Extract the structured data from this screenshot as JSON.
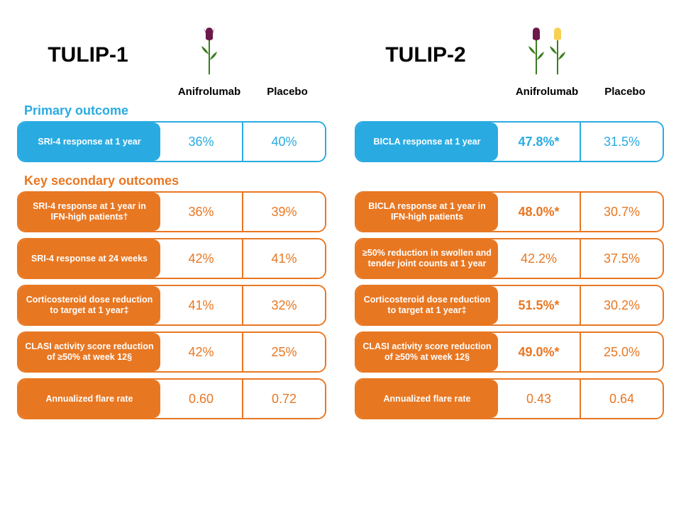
{
  "colors": {
    "blue": "#29abe2",
    "orange": "#e87722",
    "black": "#000000",
    "white": "#ffffff"
  },
  "trials": {
    "tulip1": {
      "title": "TULIP-1",
      "tulip_colors": [
        "#6b1a4a"
      ],
      "drug_labels": {
        "anif": "Anifrolumab",
        "plac": "Placebo"
      },
      "primary": {
        "label": "SRI-4 response at 1 year",
        "anif": "36%",
        "plac": "40%",
        "anif_bold": false
      },
      "secondary": [
        {
          "label": "SRI-4 response at 1 year in IFN-high patients†",
          "anif": "36%",
          "plac": "39%",
          "anif_bold": false
        },
        {
          "label": "SRI-4 response at 24 weeks",
          "anif": "42%",
          "plac": "41%",
          "anif_bold": false
        },
        {
          "label": "Corticosteroid dose reduction to target at 1  year‡",
          "anif": "41%",
          "plac": "32%",
          "anif_bold": false
        },
        {
          "label": "CLASI activity score reduction of ≥50% at week 12§",
          "anif": "42%",
          "plac": "25%",
          "anif_bold": false
        },
        {
          "label": "Annualized flare rate",
          "anif": "0.60",
          "plac": "0.72",
          "anif_bold": false
        }
      ]
    },
    "tulip2": {
      "title": "TULIP-2",
      "tulip_colors": [
        "#6b1a4a",
        "#f7d154"
      ],
      "drug_labels": {
        "anif": "Anifrolumab",
        "plac": "Placebo"
      },
      "primary": {
        "label": "BICLA response at 1 year",
        "anif": "47.8%*",
        "plac": "31.5%",
        "anif_bold": true,
        "anif_fillblue": true
      },
      "secondary": [
        {
          "label": "BICLA response at 1 year in IFN-high patients",
          "anif": "48.0%*",
          "plac": "30.7%",
          "anif_bold": true
        },
        {
          "label": "≥50% reduction in swollen and tender joint counts at 1 year",
          "anif": "42.2%",
          "plac": "37.5%",
          "anif_bold": false
        },
        {
          "label": "Corticosteroid dose reduction to target at 1  year‡",
          "anif": "51.5%*",
          "plac": "30.2%",
          "anif_bold": true
        },
        {
          "label": "CLASI activity score reduction of ≥50% at week 12§",
          "anif": "49.0%*",
          "plac": "25.0%",
          "anif_bold": true
        },
        {
          "label": "Annualized flare rate",
          "anif": "0.43",
          "plac": "0.64",
          "anif_bold": false
        }
      ]
    }
  },
  "headings": {
    "primary": "Primary outcome",
    "secondary": "Key secondary outcomes"
  }
}
